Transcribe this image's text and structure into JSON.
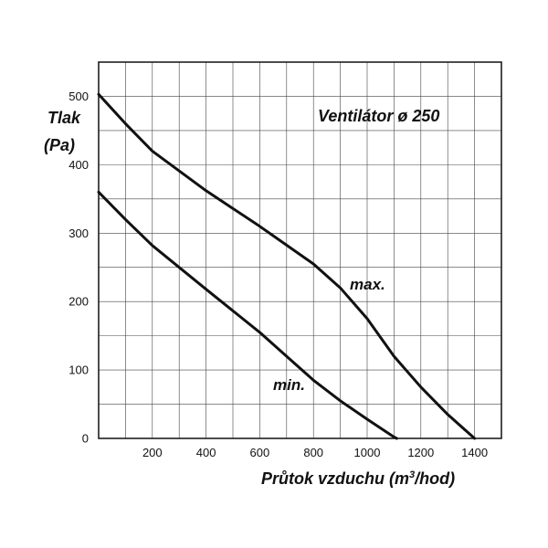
{
  "chart_data": {
    "type": "line",
    "title": "Ventilátor ø 250",
    "ylabel_line1": "Tlak",
    "ylabel_line2": "(Pa)",
    "xlabel_main": "Průtok vzduchu (m",
    "xlabel_sup": "3",
    "xlabel_tail": "/hod)",
    "xlim": [
      0,
      1500
    ],
    "ylim": [
      0,
      550
    ],
    "xticks": [
      200,
      400,
      600,
      800,
      1000,
      1200,
      1400
    ],
    "yticks": [
      0,
      100,
      200,
      300,
      400,
      500
    ],
    "x_tick_labels": [
      "200",
      "400",
      "600",
      "800",
      "1000",
      "1200",
      "1400"
    ],
    "y_tick_labels": [
      "0",
      "100",
      "200",
      "300",
      "400",
      "500"
    ],
    "grid": true,
    "series": [
      {
        "name": "max.",
        "points": [
          [
            0,
            503
          ],
          [
            100,
            460
          ],
          [
            200,
            420
          ],
          [
            400,
            362
          ],
          [
            600,
            310
          ],
          [
            800,
            255
          ],
          [
            900,
            220
          ],
          [
            1000,
            175
          ],
          [
            1100,
            120
          ],
          [
            1200,
            75
          ],
          [
            1300,
            35
          ],
          [
            1400,
            0
          ]
        ]
      },
      {
        "name": "min.",
        "points": [
          [
            0,
            360
          ],
          [
            100,
            320
          ],
          [
            200,
            282
          ],
          [
            400,
            218
          ],
          [
            600,
            155
          ],
          [
            700,
            120
          ],
          [
            800,
            85
          ],
          [
            900,
            55
          ],
          [
            1000,
            28
          ],
          [
            1100,
            2
          ],
          [
            1110,
            0
          ]
        ]
      }
    ]
  }
}
